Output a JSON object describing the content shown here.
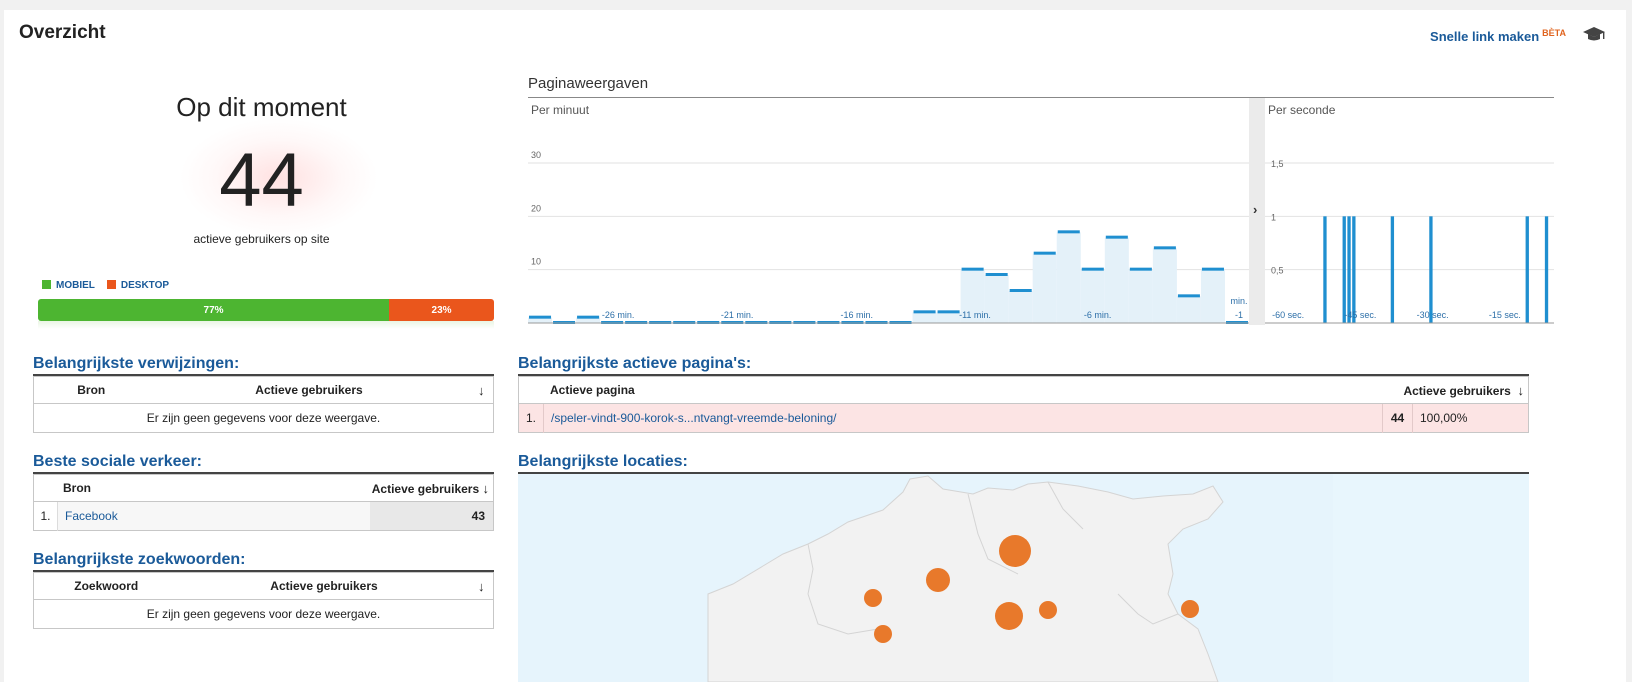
{
  "header": {
    "title": "Overzicht",
    "quick_link": "Snelle link maken",
    "beta": "BÈTA",
    "cap_icon": "graduation-cap-icon"
  },
  "active": {
    "label": "Op dit moment",
    "count": "44",
    "sublabel": "actieve gebruikers op site",
    "legend_mobile": "MOBIEL",
    "legend_desktop": "DESKTOP",
    "mobile_pct": "77%",
    "desktop_pct": "23%",
    "mobile_share": 0.77,
    "color_mobile": "#4db531",
    "color_desktop": "#ea561c"
  },
  "pageviews": {
    "title": "Paginaweergaven",
    "per_minute_label": "Per minuut",
    "per_second_label": "Per seconde",
    "expand_icon": "chevron-right-icon"
  },
  "chart_data": [
    {
      "type": "bar",
      "title": "Per minuut",
      "ylim": [
        0,
        30
      ],
      "yticks": [
        "10",
        "20",
        "30"
      ],
      "x_tick_labels": [
        "-26 min.",
        "-21 min.",
        "-16 min.",
        "-11 min.",
        "-6 min.",
        "min. -1"
      ],
      "values": [
        1,
        0,
        1,
        0,
        0,
        0,
        0,
        0,
        0,
        0,
        0,
        0,
        0,
        0,
        0,
        0,
        2,
        2,
        10,
        9,
        6,
        13,
        17,
        10,
        16,
        10,
        14,
        5,
        10,
        0
      ],
      "grid": true
    },
    {
      "type": "bar",
      "title": "Per seconde",
      "ylim": [
        0,
        1.5
      ],
      "yticks": [
        "0,5",
        "1",
        "1,5"
      ],
      "x_tick_labels": [
        "-60 sec.",
        "-45 sec.",
        "-30 sec.",
        "-15 sec."
      ],
      "values": [
        0,
        0,
        0,
        0,
        0,
        0,
        0,
        0,
        0,
        0,
        0,
        0,
        1,
        0,
        0,
        0,
        1,
        1,
        1,
        0,
        0,
        0,
        0,
        0,
        0,
        0,
        1,
        0,
        0,
        0,
        0,
        0,
        0,
        0,
        1,
        0,
        0,
        0,
        0,
        0,
        0,
        0,
        0,
        0,
        0,
        0,
        0,
        0,
        0,
        0,
        0,
        0,
        0,
        0,
        1,
        0,
        0,
        0,
        1,
        0
      ],
      "grid": true
    }
  ],
  "referrals": {
    "title": "Belangrijkste verwijzingen:",
    "col_source": "Bron",
    "col_users": "Actieve gebruikers",
    "empty": "Er zijn geen gegevens voor deze weergave.",
    "sort_icon": "sort-down-arrow-icon"
  },
  "social": {
    "title": "Beste sociale verkeer:",
    "col_source": "Bron",
    "col_users": "Actieve gebruikers",
    "rows": [
      {
        "idx": "1.",
        "source": "Facebook",
        "users": "43"
      }
    ]
  },
  "keywords": {
    "title": "Belangrijkste zoekwoorden:",
    "col_keyword": "Zoekwoord",
    "col_users": "Actieve gebruikers",
    "empty": "Er zijn geen gegevens voor deze weergave."
  },
  "pages": {
    "title": "Belangrijkste actieve pagina's:",
    "col_page": "Actieve pagina",
    "col_users": "Actieve gebruikers",
    "rows": [
      {
        "idx": "1.",
        "page": "/speler-vindt-900-korok-s...ntvangt-vreemde-beloning/",
        "users": "44",
        "pct": "100,00%"
      }
    ]
  },
  "locations": {
    "title": "Belangrijkste locaties:",
    "bubble_color": "#e8792b",
    "land_color": "#f2f2f2",
    "water_color": "#e6f4fc"
  }
}
